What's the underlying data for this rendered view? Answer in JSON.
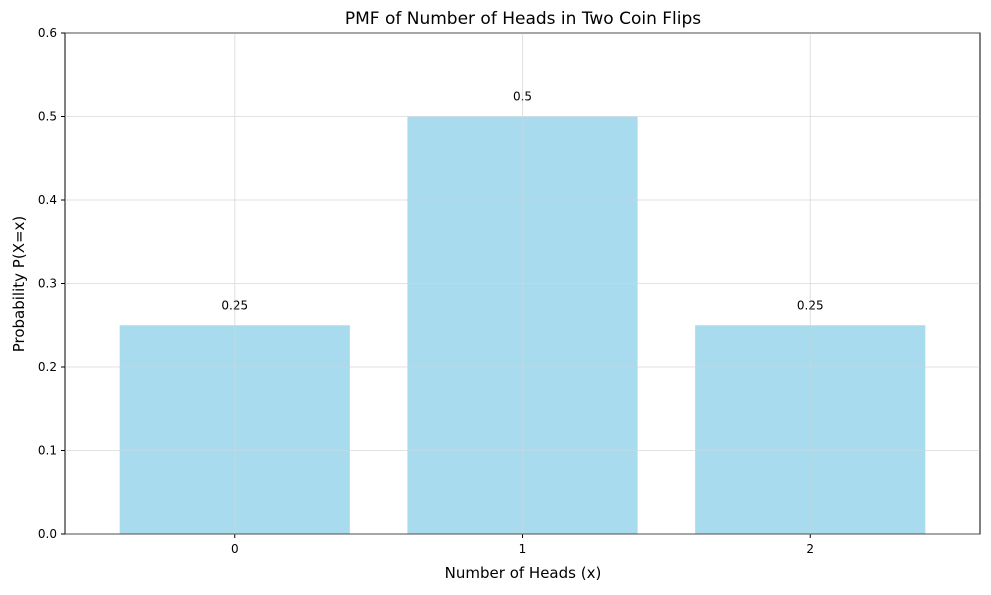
{
  "chart_data": {
    "type": "bar",
    "title": "PMF of Number of Heads in Two Coin Flips",
    "xlabel": "Number of Heads (x)",
    "ylabel": "Probability P(X=x)",
    "categories": [
      "0",
      "1",
      "2"
    ],
    "values": [
      0.25,
      0.5,
      0.25
    ],
    "data_labels": [
      "0.25",
      "0.5",
      "0.25"
    ],
    "ylim": [
      0,
      0.6
    ],
    "yticks": [
      0.0,
      0.1,
      0.2,
      0.3,
      0.4,
      0.5,
      0.6
    ],
    "ytick_labels": [
      "0.0",
      "0.1",
      "0.2",
      "0.3",
      "0.4",
      "0.5",
      "0.6"
    ],
    "grid": true,
    "legend": "none",
    "bar_color": "#a8dbed",
    "grid_color": "#e6e6e6",
    "axis_color": "#000000"
  }
}
